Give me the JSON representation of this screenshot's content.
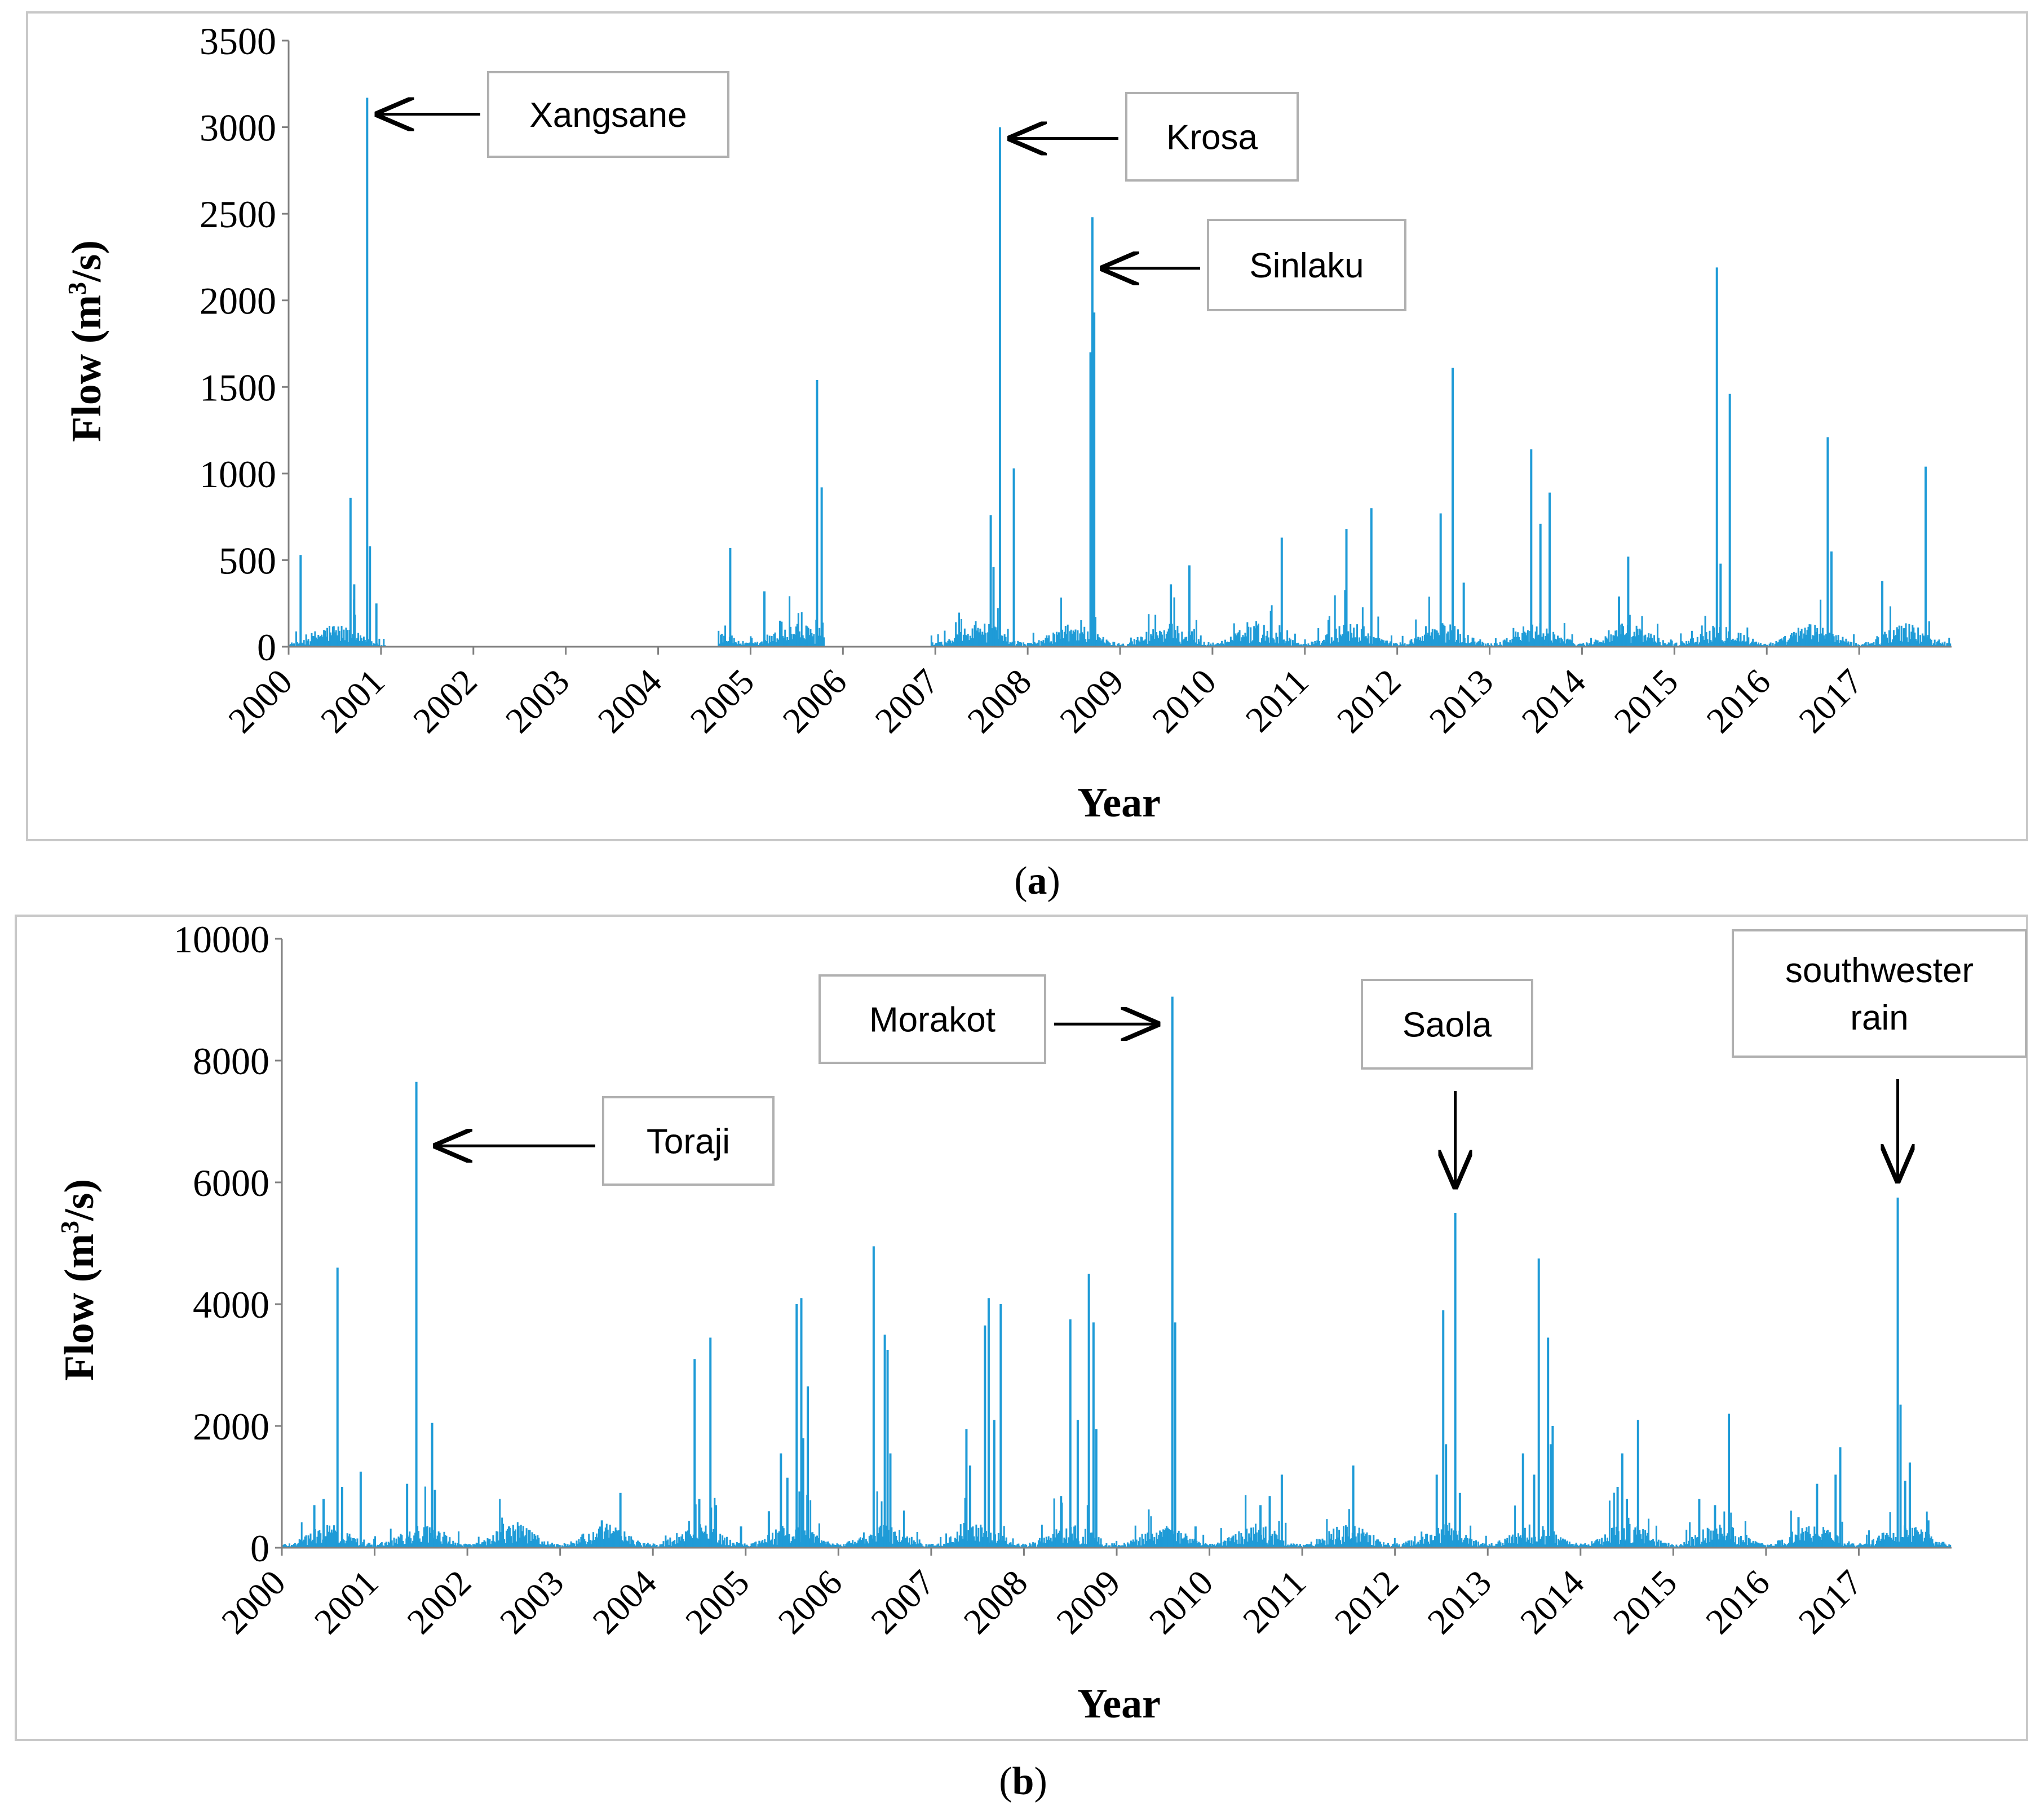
{
  "chart_data": [
    {
      "type": "bar",
      "panel_label": "a",
      "caption": {
        "open": "(",
        "letter": "a",
        "close": ")"
      },
      "xlabel": "Year",
      "ylabel": {
        "base": "Flow (m",
        "sup": "3",
        "tail": "/s)"
      },
      "ylim": [
        0,
        3500
      ],
      "yticks": [
        0,
        500,
        1000,
        1500,
        2000,
        2500,
        3000,
        3500
      ],
      "xlim": [
        2000,
        2018
      ],
      "xticks": [
        "2000",
        "2001",
        "2002",
        "2003",
        "2004",
        "2005",
        "2006",
        "2007",
        "2008",
        "2009",
        "2010",
        "2011",
        "2012",
        "2013",
        "2014",
        "2015",
        "2016",
        "2017"
      ],
      "series_color": "#1f9bd7",
      "data_gaps": [
        [
          2001.05,
          2004.65
        ],
        [
          2005.8,
          2006.95
        ]
      ],
      "peaks": [
        {
          "x": 2000.13,
          "y": 530
        },
        {
          "x": 2000.67,
          "y": 860
        },
        {
          "x": 2000.71,
          "y": 360
        },
        {
          "x": 2000.85,
          "y": 3170
        },
        {
          "x": 2000.88,
          "y": 580
        },
        {
          "x": 2000.95,
          "y": 250
        },
        {
          "x": 2004.78,
          "y": 570
        },
        {
          "x": 2005.15,
          "y": 320
        },
        {
          "x": 2005.32,
          "y": 150
        },
        {
          "x": 2005.72,
          "y": 1540
        },
        {
          "x": 2005.77,
          "y": 920
        },
        {
          "x": 2007.6,
          "y": 760
        },
        {
          "x": 2007.63,
          "y": 460
        },
        {
          "x": 2007.7,
          "y": 3000
        },
        {
          "x": 2007.85,
          "y": 1030
        },
        {
          "x": 2008.7,
          "y": 2480
        },
        {
          "x": 2008.72,
          "y": 1930
        },
        {
          "x": 2008.68,
          "y": 1700
        },
        {
          "x": 2009.55,
          "y": 360
        },
        {
          "x": 2009.75,
          "y": 470
        },
        {
          "x": 2010.75,
          "y": 630
        },
        {
          "x": 2011.45,
          "y": 680
        },
        {
          "x": 2011.72,
          "y": 800
        },
        {
          "x": 2012.47,
          "y": 770
        },
        {
          "x": 2012.6,
          "y": 1610
        },
        {
          "x": 2012.72,
          "y": 370
        },
        {
          "x": 2013.45,
          "y": 1140
        },
        {
          "x": 2013.55,
          "y": 710
        },
        {
          "x": 2013.65,
          "y": 890
        },
        {
          "x": 2014.4,
          "y": 290
        },
        {
          "x": 2014.5,
          "y": 520
        },
        {
          "x": 2015.46,
          "y": 2190
        },
        {
          "x": 2015.5,
          "y": 480
        },
        {
          "x": 2015.6,
          "y": 1460
        },
        {
          "x": 2016.66,
          "y": 1210
        },
        {
          "x": 2016.7,
          "y": 550
        },
        {
          "x": 2017.25,
          "y": 380
        },
        {
          "x": 2017.72,
          "y": 1040
        }
      ],
      "annotations": [
        {
          "label": "Xangsane",
          "x": 2000.85,
          "y": 3075,
          "direction": "left"
        },
        {
          "label": "Krosa",
          "x": 2007.7,
          "y": 2935,
          "direction": "left"
        },
        {
          "label": "Sinlaku",
          "x": 2008.7,
          "y": 2185,
          "direction": "left"
        }
      ]
    },
    {
      "type": "bar",
      "panel_label": "b",
      "caption": {
        "open": "(",
        "letter": "b",
        "close": ")"
      },
      "xlabel": "Year",
      "ylabel": {
        "base": "Flow (m",
        "sup": "3",
        "tail": "/s)"
      },
      "ylim": [
        0,
        10000
      ],
      "yticks": [
        0,
        2000,
        4000,
        6000,
        8000,
        10000
      ],
      "xlim": [
        2000,
        2018
      ],
      "xticks": [
        "2000",
        "2001",
        "2002",
        "2003",
        "2004",
        "2005",
        "2006",
        "2007",
        "2008",
        "2009",
        "2010",
        "2011",
        "2012",
        "2013",
        "2014",
        "2015",
        "2016",
        "2017"
      ],
      "series_color": "#1f9bd7",
      "data_gaps": [],
      "peaks": [
        {
          "x": 2000.35,
          "y": 700
        },
        {
          "x": 2000.45,
          "y": 800
        },
        {
          "x": 2000.6,
          "y": 4600
        },
        {
          "x": 2000.65,
          "y": 1000
        },
        {
          "x": 2000.85,
          "y": 1250
        },
        {
          "x": 2001.35,
          "y": 1050
        },
        {
          "x": 2001.45,
          "y": 7650
        },
        {
          "x": 2001.62,
          "y": 2050
        },
        {
          "x": 2001.65,
          "y": 950
        },
        {
          "x": 2002.45,
          "y": 350
        },
        {
          "x": 2003.45,
          "y": 450
        },
        {
          "x": 2003.65,
          "y": 900
        },
        {
          "x": 2004.45,
          "y": 3100
        },
        {
          "x": 2004.5,
          "y": 800
        },
        {
          "x": 2004.62,
          "y": 3450
        },
        {
          "x": 2004.68,
          "y": 700
        },
        {
          "x": 2004.95,
          "y": 350
        },
        {
          "x": 2005.25,
          "y": 600
        },
        {
          "x": 2005.38,
          "y": 1550
        },
        {
          "x": 2005.45,
          "y": 1150
        },
        {
          "x": 2005.55,
          "y": 4000
        },
        {
          "x": 2005.6,
          "y": 4100
        },
        {
          "x": 2005.62,
          "y": 1800
        },
        {
          "x": 2005.67,
          "y": 2650
        },
        {
          "x": 2006.38,
          "y": 4950
        },
        {
          "x": 2006.5,
          "y": 3500
        },
        {
          "x": 2006.53,
          "y": 3250
        },
        {
          "x": 2006.56,
          "y": 1550
        },
        {
          "x": 2007.38,
          "y": 1950
        },
        {
          "x": 2007.42,
          "y": 1350
        },
        {
          "x": 2007.58,
          "y": 3650
        },
        {
          "x": 2007.62,
          "y": 4100
        },
        {
          "x": 2007.68,
          "y": 2100
        },
        {
          "x": 2007.75,
          "y": 4000
        },
        {
          "x": 2008.4,
          "y": 850
        },
        {
          "x": 2008.5,
          "y": 3750
        },
        {
          "x": 2008.58,
          "y": 2100
        },
        {
          "x": 2008.7,
          "y": 4500
        },
        {
          "x": 2008.75,
          "y": 3700
        },
        {
          "x": 2008.78,
          "y": 1950
        },
        {
          "x": 2009.6,
          "y": 9050
        },
        {
          "x": 2009.63,
          "y": 3700
        },
        {
          "x": 2009.85,
          "y": 350
        },
        {
          "x": 2010.55,
          "y": 700
        },
        {
          "x": 2010.65,
          "y": 850
        },
        {
          "x": 2010.78,
          "y": 1200
        },
        {
          "x": 2011.55,
          "y": 1350
        },
        {
          "x": 2012.45,
          "y": 1200
        },
        {
          "x": 2012.52,
          "y": 3900
        },
        {
          "x": 2012.55,
          "y": 1700
        },
        {
          "x": 2012.65,
          "y": 5500
        },
        {
          "x": 2012.7,
          "y": 900
        },
        {
          "x": 2013.38,
          "y": 1550
        },
        {
          "x": 2013.5,
          "y": 1200
        },
        {
          "x": 2013.55,
          "y": 4750
        },
        {
          "x": 2013.65,
          "y": 3450
        },
        {
          "x": 2013.7,
          "y": 2000
        },
        {
          "x": 2013.68,
          "y": 1700
        },
        {
          "x": 2014.4,
          "y": 1000
        },
        {
          "x": 2014.45,
          "y": 1550
        },
        {
          "x": 2014.5,
          "y": 800
        },
        {
          "x": 2014.62,
          "y": 2100
        },
        {
          "x": 2015.28,
          "y": 800
        },
        {
          "x": 2015.45,
          "y": 700
        },
        {
          "x": 2015.6,
          "y": 2200
        },
        {
          "x": 2016.35,
          "y": 500
        },
        {
          "x": 2016.55,
          "y": 1050
        },
        {
          "x": 2016.75,
          "y": 1200
        },
        {
          "x": 2016.8,
          "y": 1650
        },
        {
          "x": 2017.42,
          "y": 5750
        },
        {
          "x": 2017.45,
          "y": 2350
        },
        {
          "x": 2017.5,
          "y": 1100
        },
        {
          "x": 2017.55,
          "y": 1400
        },
        {
          "x": 2017.75,
          "y": 450
        }
      ],
      "annotations": [
        {
          "label": "Toraji",
          "x": 2001.55,
          "y": 6600,
          "direction": "left"
        },
        {
          "label": "Morakot",
          "x": 2009.55,
          "y": 8600,
          "direction": "right"
        },
        {
          "label": "Saola",
          "x": 2012.65,
          "y": 5800,
          "direction": "down"
        },
        {
          "label": "southwester rain",
          "lines": [
            "southwester",
            "rain"
          ],
          "x": 2017.42,
          "y": 5900,
          "direction": "down"
        }
      ]
    }
  ]
}
